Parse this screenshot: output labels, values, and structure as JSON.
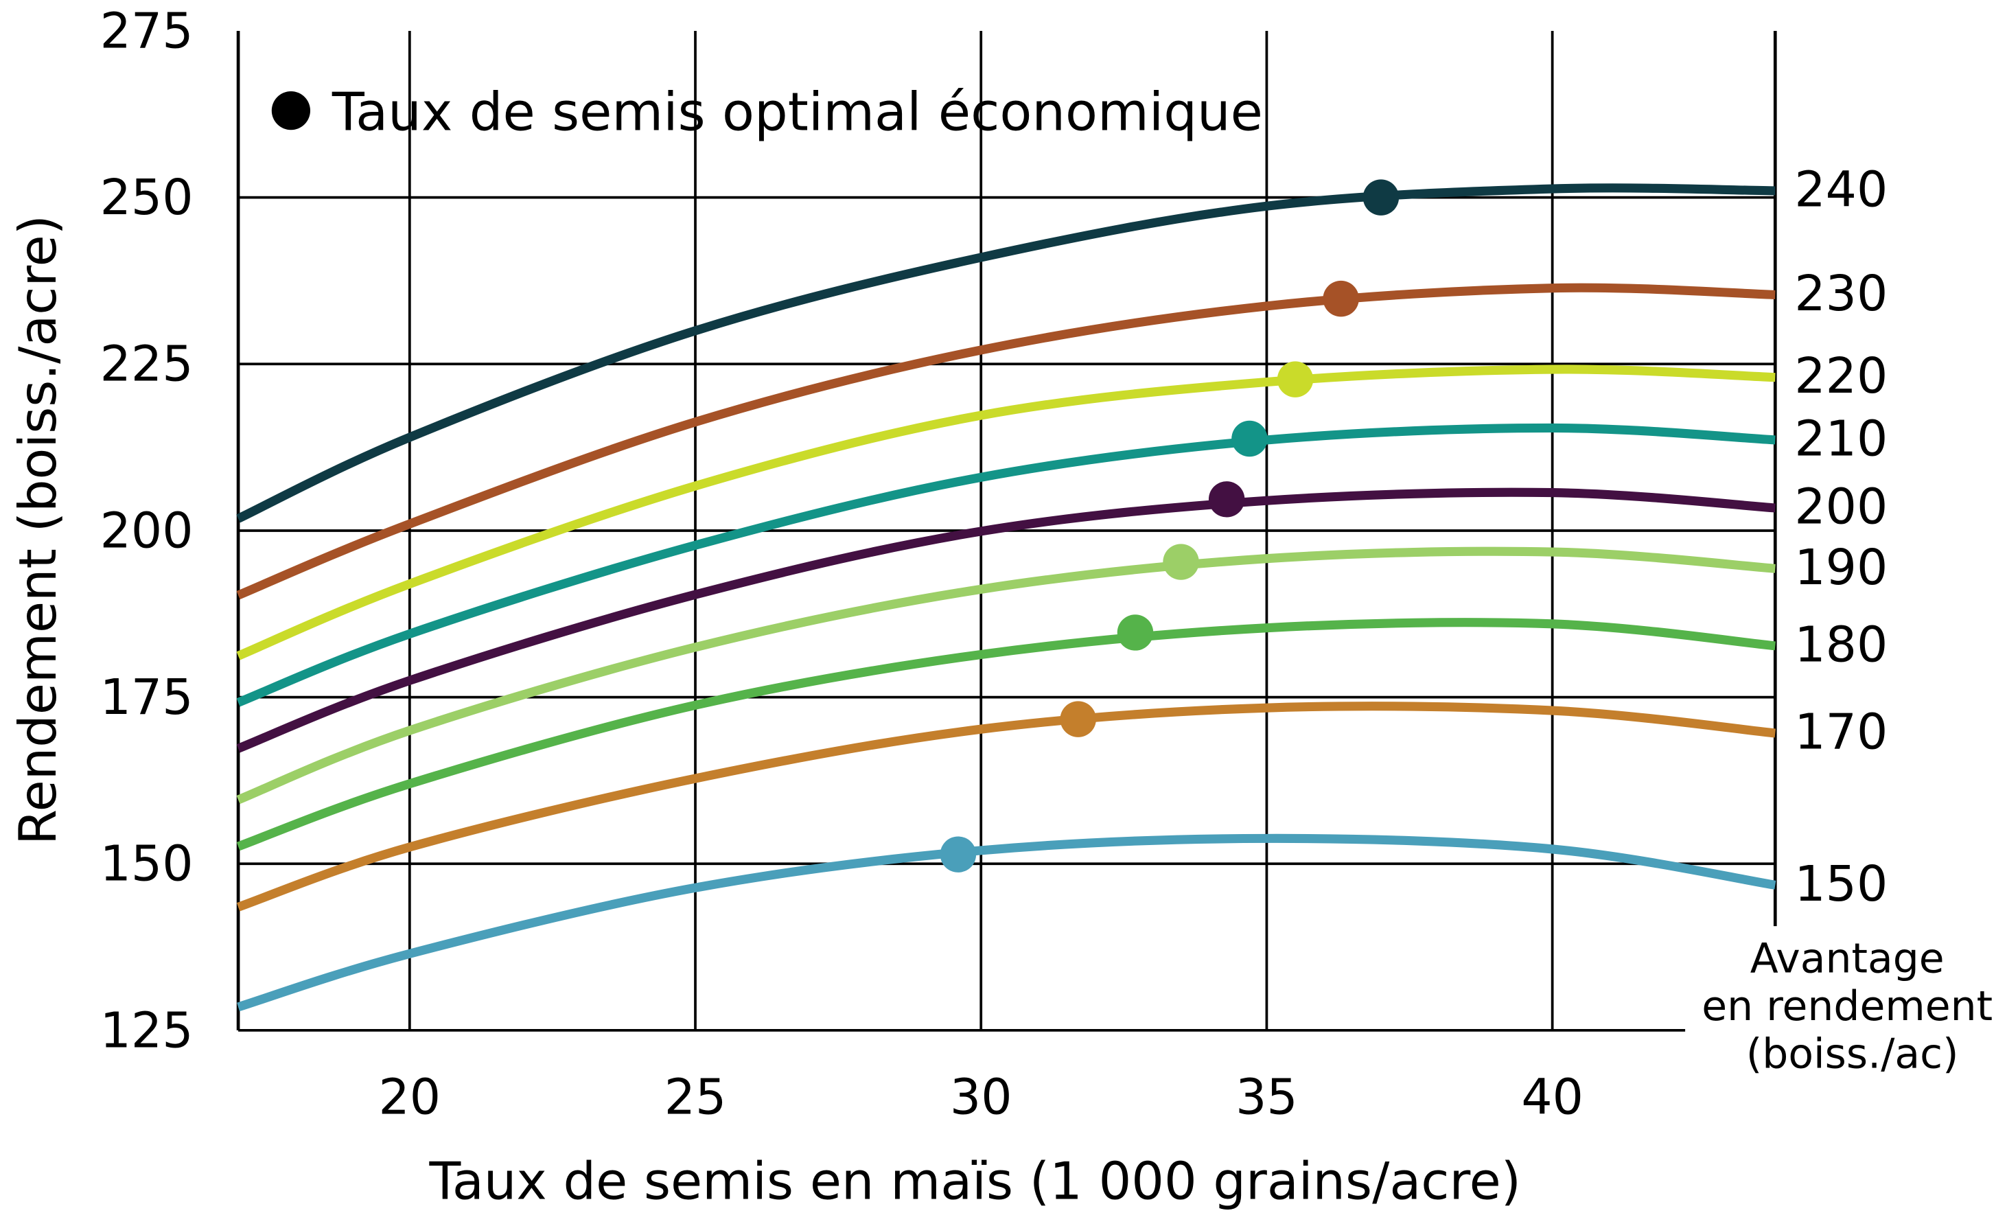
{
  "chart_data": {
    "type": "line",
    "title": "",
    "xlabel": "Taux de semis en maïs (1 000 grains/acre)",
    "ylabel": "Rendement (boiss./acre)",
    "right_axis_title": [
      "Avantage",
      "en rendement",
      "(boiss./ac)"
    ],
    "legend": {
      "label": "Taux de semis optimal économique",
      "placement": "top-left",
      "marker_color": "#000000"
    },
    "xlim": [
      17,
      43.9
    ],
    "ylim": [
      125,
      275
    ],
    "xticks": [
      20,
      25,
      30,
      35,
      40
    ],
    "yticks": [
      125,
      150,
      175,
      200,
      225,
      250,
      275
    ],
    "grid": true,
    "series": [
      {
        "name": "240",
        "color": "#0f3a44",
        "x": [
          17,
          20,
          25,
          30,
          35,
          40,
          43.9
        ],
        "y": [
          201.8,
          214,
          230,
          241,
          248.7,
          251.3,
          251
        ],
        "optimum": {
          "x": 37.0,
          "y": 250
        }
      },
      {
        "name": "230",
        "color": "#a65227",
        "x": [
          17,
          20,
          25,
          30,
          35,
          40,
          43.9
        ],
        "y": [
          190.3,
          201,
          216.3,
          227.1,
          233.7,
          236.4,
          235.4
        ],
        "optimum": {
          "x": 36.3,
          "y": 234.8
        }
      },
      {
        "name": "220",
        "color": "#cadb2a",
        "x": [
          17,
          20,
          25,
          30,
          35,
          40,
          43.9
        ],
        "y": [
          181.2,
          192,
          206.7,
          217.3,
          222.3,
          224.2,
          223
        ],
        "optimum": {
          "x": 35.5,
          "y": 222.7
        }
      },
      {
        "name": "210",
        "color": "#139488",
        "x": [
          17,
          20,
          25,
          30,
          35,
          40,
          43.9
        ],
        "y": [
          174.2,
          184.5,
          197.8,
          208,
          213.6,
          215.4,
          213.6
        ],
        "optimum": {
          "x": 34.7,
          "y": 213.8
        }
      },
      {
        "name": "200",
        "color": "#431042",
        "x": [
          17,
          20,
          25,
          30,
          35,
          40,
          43.9
        ],
        "y": [
          167.3,
          177.5,
          190.4,
          199.9,
          204.5,
          205.7,
          203.4
        ],
        "optimum": {
          "x": 34.3,
          "y": 204.7
        }
      },
      {
        "name": "190",
        "color": "#9ccf67",
        "x": [
          17,
          20,
          25,
          30,
          35,
          40,
          43.9
        ],
        "y": [
          159.6,
          170,
          182.5,
          191.2,
          195.8,
          196.8,
          194.3
        ],
        "optimum": {
          "x": 33.5,
          "y": 195.3
        }
      },
      {
        "name": "180",
        "color": "#55b34a",
        "x": [
          17,
          20,
          25,
          30,
          35,
          40,
          43.9
        ],
        "y": [
          152.6,
          162,
          173.8,
          181.4,
          185.4,
          186,
          182.7
        ],
        "optimum": {
          "x": 32.7,
          "y": 184.7
        }
      },
      {
        "name": "170",
        "color": "#c47f2c",
        "x": [
          17,
          20,
          25,
          30,
          35,
          40,
          43.9
        ],
        "y": [
          143.5,
          152.5,
          162.8,
          170.2,
          173.4,
          173,
          169.6
        ],
        "optimum": {
          "x": 31.7,
          "y": 171.7
        }
      },
      {
        "name": "150",
        "color": "#4a9fba",
        "x": [
          17,
          20,
          25,
          30,
          35,
          40,
          43.9
        ],
        "y": [
          128.5,
          136.5,
          146.4,
          152,
          153.8,
          152.2,
          146.8
        ],
        "optimum": {
          "x": 29.6,
          "y": 151.4
        }
      }
    ]
  }
}
